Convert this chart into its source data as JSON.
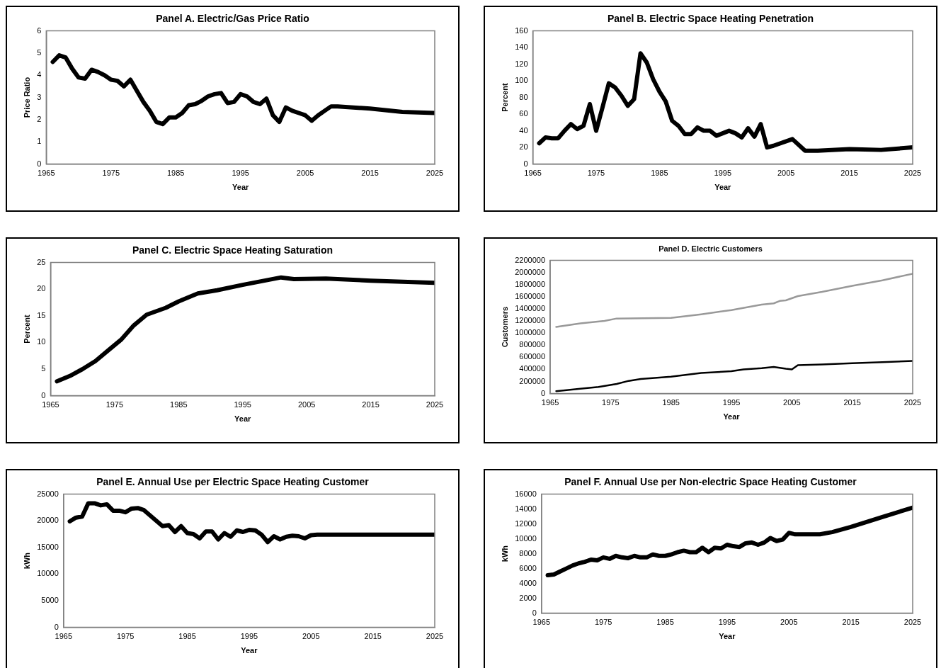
{
  "chart_data": [
    {
      "type": "line",
      "title": "Panel A. Electric/Gas Price Ratio",
      "xlabel": "Year",
      "ylabel": "Price Ratio",
      "marker": "none",
      "line_style": "solid",
      "xlim": [
        1965,
        2025
      ],
      "xticks": [
        1965,
        1975,
        1985,
        1995,
        2005,
        2015,
        2025
      ],
      "ylim": [
        0,
        6
      ],
      "yticks": [
        0,
        1,
        2,
        3,
        4,
        5,
        6
      ],
      "x": [
        1966,
        1967,
        1968,
        1969,
        1970,
        1971,
        1972,
        1973,
        1974,
        1975,
        1976,
        1977,
        1978,
        1979,
        1980,
        1981,
        1982,
        1983,
        1984,
        1985,
        1986,
        1987,
        1988,
        1989,
        1990,
        1991,
        1992,
        1993,
        1994,
        1995,
        1996,
        1997,
        1998,
        1999,
        2000,
        2001,
        2002,
        2003,
        2004,
        2005,
        2006,
        2007,
        2008,
        2009,
        2010,
        2015,
        2020,
        2025
      ],
      "series": [
        {
          "color": "#000000",
          "values": [
            4.6,
            4.9,
            4.8,
            4.3,
            3.9,
            3.85,
            4.25,
            4.15,
            4.0,
            3.8,
            3.75,
            3.5,
            3.8,
            3.3,
            2.8,
            2.4,
            1.9,
            1.8,
            2.1,
            2.1,
            2.3,
            2.65,
            2.7,
            2.85,
            3.05,
            3.15,
            3.2,
            2.75,
            2.8,
            3.15,
            3.05,
            2.8,
            2.7,
            2.95,
            2.2,
            1.9,
            2.55,
            2.4,
            2.3,
            2.2,
            1.95,
            2.2,
            2.4,
            2.6,
            2.6,
            2.5,
            2.35,
            2.3
          ]
        }
      ]
    },
    {
      "type": "line",
      "title": "Panel B. Electric Space Heating Penetration",
      "xlabel": "Year",
      "ylabel": "Percent",
      "marker": "none",
      "line_style": "solid",
      "xlim": [
        1965,
        2025
      ],
      "xticks": [
        1965,
        1975,
        1985,
        1995,
        2005,
        2015,
        2025
      ],
      "ylim": [
        0,
        160
      ],
      "yticks": [
        0,
        20,
        40,
        60,
        80,
        100,
        120,
        140,
        160
      ],
      "x": [
        1966,
        1967,
        1968,
        1969,
        1970,
        1971,
        1972,
        1973,
        1974,
        1975,
        1976,
        1977,
        1978,
        1979,
        1980,
        1981,
        1982,
        1983,
        1984,
        1985,
        1986,
        1987,
        1988,
        1989,
        1990,
        1991,
        1992,
        1993,
        1994,
        1995,
        1996,
        1997,
        1998,
        1999,
        2000,
        2001,
        2002,
        2003,
        2006,
        2008,
        2010,
        2015,
        2020,
        2025
      ],
      "series": [
        {
          "color": "#000000",
          "values": [
            25,
            32,
            31,
            31,
            40,
            48,
            42,
            46,
            72,
            40,
            68,
            97,
            92,
            82,
            70,
            78,
            133,
            122,
            102,
            87,
            75,
            52,
            46,
            36,
            36,
            44,
            40,
            40,
            34,
            37,
            40,
            37,
            32,
            43,
            33,
            48,
            20,
            22,
            30,
            16,
            16,
            18,
            17,
            20
          ]
        }
      ]
    },
    {
      "type": "line",
      "title": "Panel C. Electric Space Heating Saturation",
      "xlabel": "Year",
      "ylabel": "Percent",
      "marker": "none",
      "line_style": "solid",
      "xlim": [
        1965,
        2025
      ],
      "xticks": [
        1965,
        1975,
        1985,
        1995,
        2005,
        2015,
        2025
      ],
      "ylim": [
        0,
        25
      ],
      "yticks": [
        0,
        5,
        10,
        15,
        20,
        25
      ],
      "x": [
        1966,
        1968,
        1970,
        1972,
        1974,
        1976,
        1978,
        1980,
        1983,
        1985,
        1988,
        1991,
        1995,
        1998,
        2001,
        2003,
        2008,
        2015,
        2025
      ],
      "series": [
        {
          "color": "#000000",
          "values": [
            2.7,
            3.7,
            5,
            6.5,
            8.5,
            10.5,
            13.2,
            15.2,
            16.5,
            17.7,
            19.2,
            19.8,
            20.8,
            21.5,
            22.2,
            21.9,
            22,
            21.6,
            21.2
          ]
        }
      ]
    },
    {
      "type": "line",
      "title": "Panel D. Electric Customers",
      "xlabel": "Year",
      "ylabel": "Customers",
      "marker": "none",
      "line_style": "solid",
      "xlim": [
        1965,
        2025
      ],
      "xticks": [
        1965,
        1975,
        1985,
        1995,
        2005,
        2015,
        2025
      ],
      "ylim": [
        0,
        2200000
      ],
      "yticks": [
        0,
        200000,
        400000,
        600000,
        800000,
        1000000,
        1200000,
        1400000,
        1600000,
        1800000,
        2000000,
        2200000
      ],
      "series": [
        {
          "color": "#999999",
          "x": [
            1966,
            1970,
            1974,
            1976,
            1985,
            1990,
            1995,
            2000,
            2002,
            2003,
            2004,
            2006,
            2010,
            2015,
            2020,
            2025
          ],
          "values": [
            1100000,
            1160000,
            1200000,
            1240000,
            1250000,
            1310000,
            1380000,
            1470000,
            1490000,
            1530000,
            1540000,
            1610000,
            1680000,
            1780000,
            1870000,
            1980000
          ]
        },
        {
          "color": "#000000",
          "x": [
            1966,
            1970,
            1973,
            1976,
            1978,
            1980,
            1985,
            1990,
            1995,
            1997,
            2000,
            2002,
            2004,
            2005,
            2006,
            2010,
            2015,
            2020,
            2025
          ],
          "values": [
            40000,
            80000,
            110000,
            160000,
            210000,
            240000,
            280000,
            340000,
            370000,
            400000,
            420000,
            440000,
            410000,
            400000,
            470000,
            480000,
            500000,
            520000,
            540000
          ]
        }
      ]
    },
    {
      "type": "line",
      "title": "Panel E. Annual Use per Electric Space Heating Customer",
      "xlabel": "Year",
      "ylabel": "kWh",
      "marker": "none",
      "line_style": "solid",
      "xlim": [
        1965,
        2025
      ],
      "xticks": [
        1965,
        1975,
        1985,
        1995,
        2005,
        2015,
        2025
      ],
      "ylim": [
        0,
        25000
      ],
      "yticks": [
        0,
        5000,
        10000,
        15000,
        20000,
        25000
      ],
      "x": [
        1966,
        1967,
        1968,
        1969,
        1970,
        1971,
        1972,
        1973,
        1974,
        1975,
        1976,
        1977,
        1978,
        1979,
        1980,
        1981,
        1982,
        1983,
        1984,
        1985,
        1986,
        1987,
        1988,
        1989,
        1990,
        1991,
        1992,
        1993,
        1994,
        1995,
        1996,
        1997,
        1998,
        1999,
        2000,
        2001,
        2002,
        2003,
        2004,
        2005,
        2006,
        2025
      ],
      "series": [
        {
          "color": "#000000",
          "values": [
            19900,
            20600,
            20800,
            23300,
            23300,
            22900,
            23100,
            21900,
            21900,
            21600,
            22300,
            22400,
            22000,
            21000,
            20000,
            19000,
            19200,
            17900,
            19000,
            17700,
            17500,
            16700,
            18000,
            18000,
            16500,
            17700,
            17000,
            18200,
            17900,
            18300,
            18200,
            17400,
            16000,
            17100,
            16500,
            17000,
            17200,
            17100,
            16700,
            17300,
            17400,
            17400
          ]
        }
      ]
    },
    {
      "type": "line",
      "title": "Panel F. Annual Use per Non-electric Space Heating Customer",
      "xlabel": "Year",
      "ylabel": "kWh",
      "marker": "none",
      "line_style": "solid",
      "xlim": [
        1965,
        2025
      ],
      "xticks": [
        1965,
        1975,
        1985,
        1995,
        2005,
        2015,
        2025
      ],
      "ylim": [
        0,
        16000
      ],
      "yticks": [
        0,
        2000,
        4000,
        6000,
        8000,
        10000,
        12000,
        14000,
        16000
      ],
      "x": [
        1966,
        1967,
        1968,
        1969,
        1970,
        1971,
        1972,
        1973,
        1974,
        1975,
        1976,
        1977,
        1978,
        1979,
        1980,
        1981,
        1982,
        1983,
        1984,
        1985,
        1986,
        1987,
        1988,
        1989,
        1990,
        1991,
        1992,
        1993,
        1994,
        1995,
        1996,
        1997,
        1998,
        1999,
        2000,
        2001,
        2002,
        2003,
        2004,
        2005,
        2006,
        2008,
        2010,
        2012,
        2015,
        2020,
        2025
      ],
      "series": [
        {
          "color": "#000000",
          "values": [
            5100,
            5200,
            5600,
            6000,
            6400,
            6700,
            6900,
            7200,
            7100,
            7500,
            7300,
            7700,
            7500,
            7400,
            7700,
            7500,
            7500,
            7900,
            7700,
            7700,
            7900,
            8200,
            8400,
            8200,
            8200,
            8800,
            8200,
            8800,
            8700,
            9200,
            9000,
            8900,
            9400,
            9500,
            9200,
            9500,
            10100,
            9700,
            9900,
            10800,
            10600,
            10600,
            10600,
            10900,
            11600,
            12900,
            14200
          ]
        }
      ]
    }
  ]
}
